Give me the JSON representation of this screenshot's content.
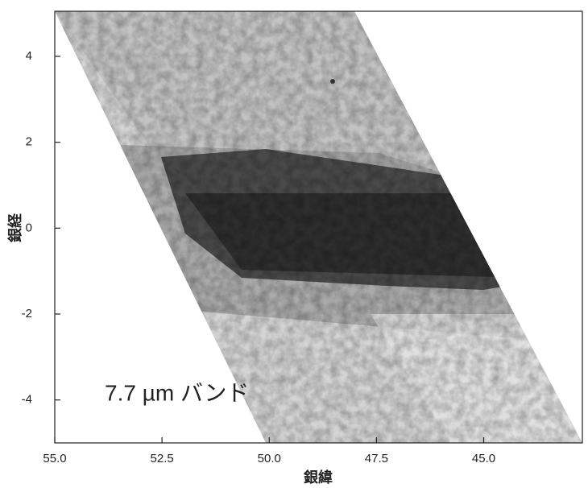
{
  "chart_data": {
    "type": "image",
    "annotation": "7.7 µm バンド",
    "xlabel": "銀緯",
    "ylabel": "銀経",
    "xlim": [
      55.0,
      42.7
    ],
    "ylim": [
      -5.0,
      5.05
    ],
    "xticks": [
      {
        "value": 55.0,
        "label": "55.0"
      },
      {
        "value": 52.5,
        "label": "52.5"
      },
      {
        "value": 50.0,
        "label": "50.0"
      },
      {
        "value": 47.5,
        "label": "47.5"
      },
      {
        "value": 45.0,
        "label": "45.0"
      }
    ],
    "yticks": [
      -4,
      -2,
      0,
      2,
      4
    ]
  }
}
